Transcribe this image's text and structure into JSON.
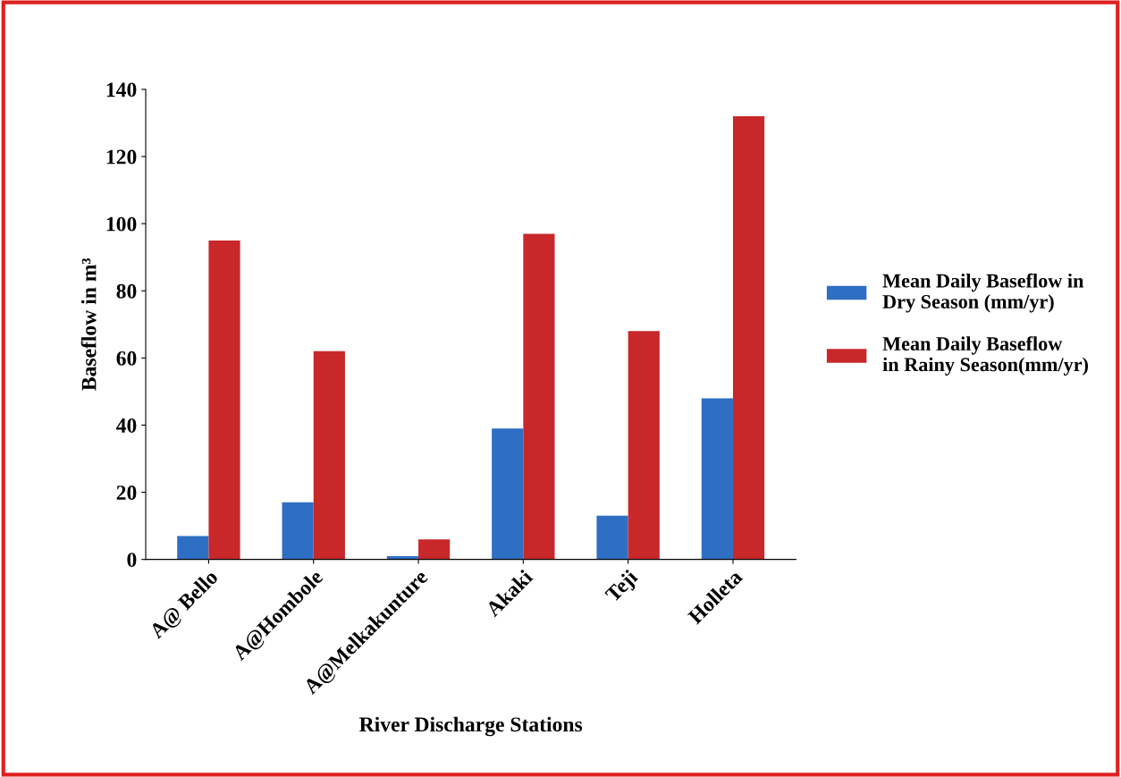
{
  "chart_data": {
    "type": "bar",
    "xlabel": "River Discharge Stations",
    "ylabel": "Baseflow in m³",
    "categories": [
      "A@ Bello",
      "A@Hombole",
      "A@Melkakunture",
      "Akaki",
      "Teji",
      "Holleta"
    ],
    "series": [
      {
        "name": "Mean Daily Baseflow in Dry Season (mm/yr)",
        "color": "#2e6fc4",
        "values": [
          7,
          17,
          1,
          39,
          13,
          48
        ]
      },
      {
        "name": "Mean Daily Baseflow  in Rainy Season(mm/yr)",
        "color": "#c8282a",
        "values": [
          95,
          62,
          6,
          97,
          68,
          132
        ]
      }
    ],
    "ylim": [
      0,
      140
    ],
    "yticks": [
      0,
      20,
      40,
      60,
      80,
      100,
      120,
      140
    ],
    "grid": false,
    "legend": "right"
  }
}
